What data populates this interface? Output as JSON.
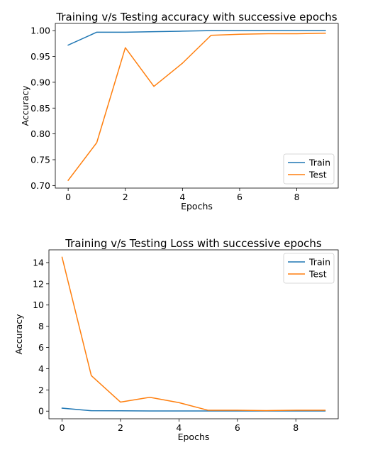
{
  "chart_data": [
    {
      "type": "line",
      "title": "Training v/s Testing accuracy with successive epochs",
      "xlabel": "Epochs",
      "ylabel": "Accuracy",
      "xlim": [
        -0.45,
        9.45
      ],
      "ylim": [
        0.695,
        1.014
      ],
      "xticks": [
        0,
        2,
        4,
        6,
        8
      ],
      "xtick_labels": [
        "0",
        "2",
        "4",
        "6",
        "8"
      ],
      "yticks": [
        0.7,
        0.75,
        0.8,
        0.85,
        0.9,
        0.95,
        1.0
      ],
      "ytick_labels": [
        "0.70",
        "0.75",
        "0.80",
        "0.85",
        "0.90",
        "0.95",
        "1.00"
      ],
      "legend_position": "lower-right",
      "x": [
        0,
        1,
        2,
        3,
        4,
        5,
        6,
        7,
        8,
        9
      ],
      "series": [
        {
          "name": "Train",
          "color": "#1f77b4",
          "values": [
            0.972,
            0.997,
            0.997,
            0.998,
            0.999,
            1.0,
            1.0,
            1.0,
            1.0,
            1.0
          ]
        },
        {
          "name": "Test",
          "color": "#ff7f0e",
          "values": [
            0.71,
            0.783,
            0.967,
            0.892,
            0.937,
            0.991,
            0.993,
            0.994,
            0.994,
            0.995
          ]
        }
      ]
    },
    {
      "type": "line",
      "title": "Training v/s Testing Loss with successive epochs",
      "xlabel": "Epochs",
      "ylabel": "Accuracy",
      "xlim": [
        -0.45,
        9.45
      ],
      "ylim": [
        -0.72,
        15.2
      ],
      "xticks": [
        0,
        2,
        4,
        6,
        8
      ],
      "xtick_labels": [
        "0",
        "2",
        "4",
        "6",
        "8"
      ],
      "yticks": [
        0,
        2,
        4,
        6,
        8,
        10,
        12,
        14
      ],
      "ytick_labels": [
        "0",
        "2",
        "4",
        "6",
        "8",
        "10",
        "12",
        "14"
      ],
      "legend_position": "upper-right",
      "x": [
        0,
        1,
        2,
        3,
        4,
        5,
        6,
        7,
        8,
        9
      ],
      "series": [
        {
          "name": "Train",
          "color": "#1f77b4",
          "values": [
            0.28,
            0.04,
            0.03,
            0.02,
            0.02,
            0.02,
            0.02,
            0.02,
            0.02,
            0.02
          ]
        },
        {
          "name": "Test",
          "color": "#ff7f0e",
          "values": [
            14.5,
            3.35,
            0.85,
            1.3,
            0.8,
            0.08,
            0.08,
            0.05,
            0.08,
            0.08
          ]
        }
      ]
    }
  ]
}
